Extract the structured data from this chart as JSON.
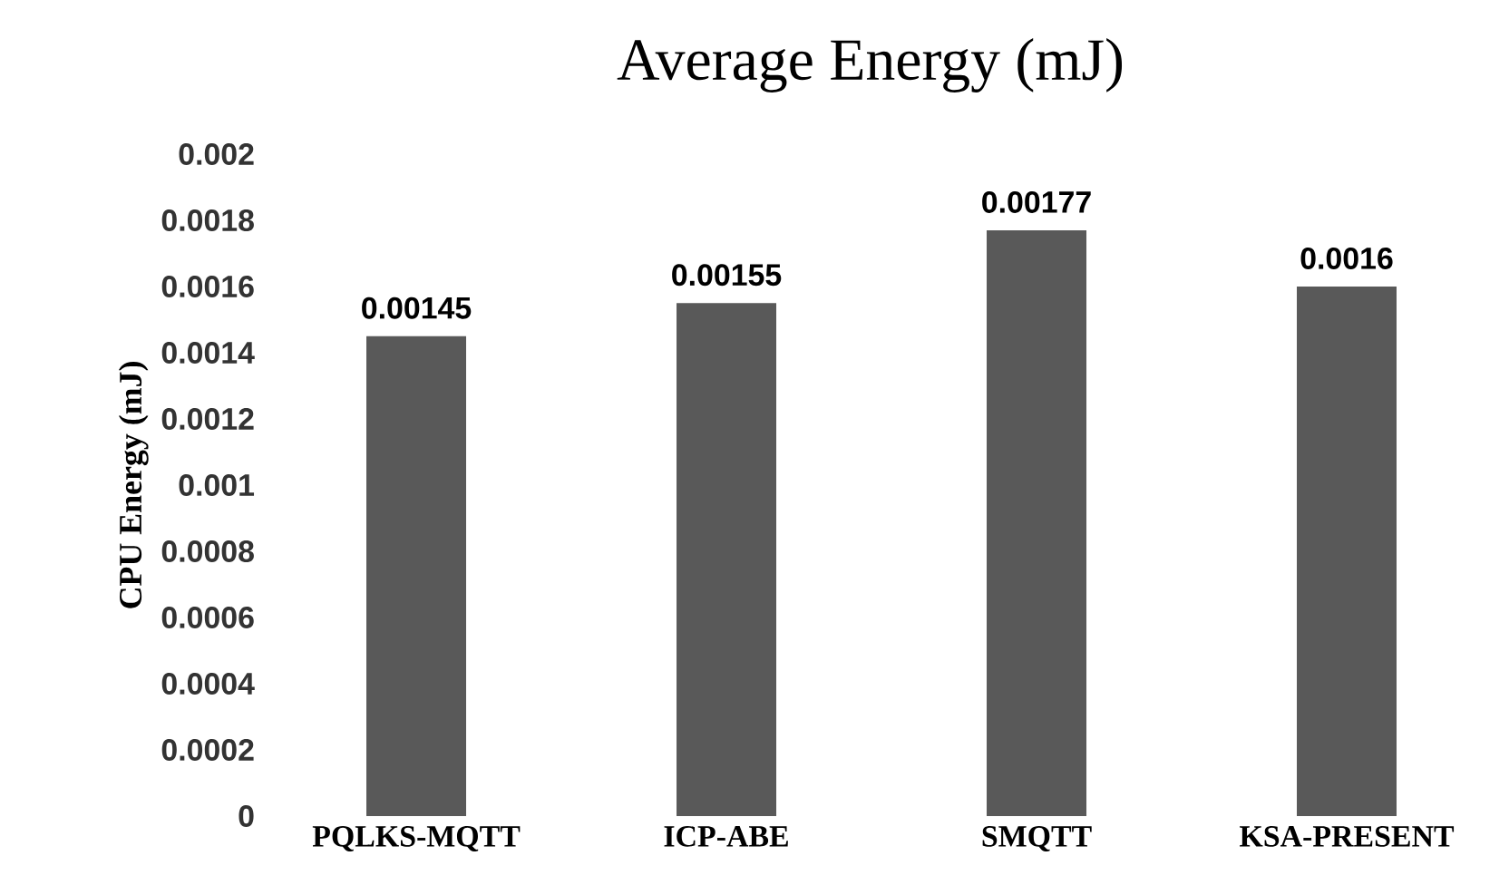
{
  "chart_data": {
    "type": "bar",
    "title": "Average Energy (mJ)",
    "ylabel": "CPU Energy (mJ)",
    "categories": [
      "PQLKS-MQTT",
      "ICP-ABE",
      "SMQTT",
      "KSA-PRESENT"
    ],
    "values": [
      0.00145,
      0.00155,
      0.00177,
      0.0016
    ],
    "color": "#595959",
    "ylim": [
      0,
      0.002
    ],
    "yticks": [
      0,
      0.0002,
      0.0004,
      0.0006,
      0.0008,
      0.001,
      0.0012,
      0.0014,
      0.0016,
      0.0018,
      0.002
    ],
    "data_labels": true,
    "grid": false
  }
}
